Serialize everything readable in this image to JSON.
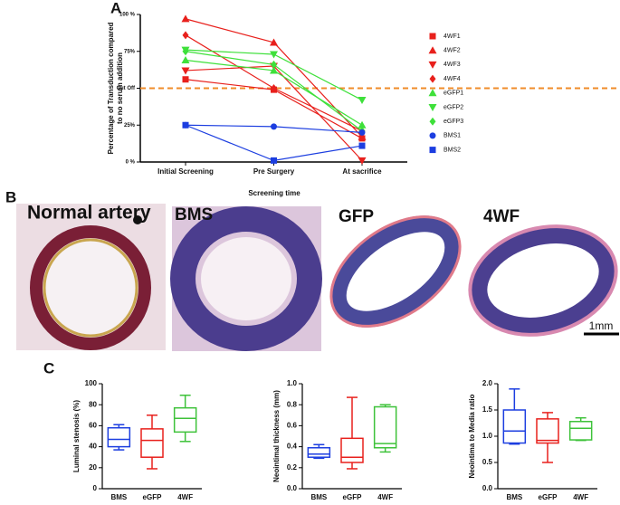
{
  "panels": {
    "b": "B"
  },
  "figure_b": {
    "x_label": "Screening time",
    "images": [
      "Normal artery",
      "BMS",
      "GFP",
      "4WF"
    ],
    "scale_bar": "1mm"
  },
  "chart_data": [
    {
      "type": "line",
      "panel": "A",
      "y_label": "Percentage of Transduction compared to no serum addition",
      "categories": [
        "Initial Screening",
        "Pre Surgery",
        "At sacrifice"
      ],
      "ylim": [
        0,
        100
      ],
      "yticks": [
        {
          "value": 0,
          "label": "0 %"
        },
        {
          "value": 25,
          "label": "25%"
        },
        {
          "value": 50,
          "label": "Cut Off"
        },
        {
          "value": 75,
          "label": "75%"
        },
        {
          "value": 100,
          "label": "100 %"
        }
      ],
      "reference_line": {
        "value": 50,
        "color": "#f08c2a"
      },
      "series": [
        {
          "name": "4WF1",
          "color": "#e8201c",
          "marker": "square",
          "values": [
            56,
            49,
            16
          ]
        },
        {
          "name": "4WF2",
          "color": "#e8201c",
          "marker": "triangle-up",
          "values": [
            97,
            81,
            17
          ]
        },
        {
          "name": "4WF3",
          "color": "#e8201c",
          "marker": "triangle-down",
          "values": [
            62,
            65,
            1
          ]
        },
        {
          "name": "4WF4",
          "color": "#e8201c",
          "marker": "diamond",
          "values": [
            86,
            50,
            21
          ]
        },
        {
          "name": "eGFP1",
          "color": "#3ee03a",
          "marker": "triangle-up",
          "values": [
            69,
            62,
            25
          ]
        },
        {
          "name": "eGFP2",
          "color": "#3ee03a",
          "marker": "triangle-down",
          "values": [
            76,
            73,
            42
          ]
        },
        {
          "name": "eGFP3",
          "color": "#3ee03a",
          "marker": "diamond",
          "values": [
            75,
            66,
            21
          ]
        },
        {
          "name": "BMS1",
          "color": "#1c3ee0",
          "marker": "circle",
          "values": [
            25,
            24,
            20
          ]
        },
        {
          "name": "BMS2",
          "color": "#1c3ee0",
          "marker": "square",
          "values": [
            25,
            1,
            11
          ]
        }
      ]
    },
    {
      "type": "box",
      "panel": "C",
      "y_label": "Luminal stenosis (%)",
      "categories": [
        "BMS",
        "eGFP",
        "4WF"
      ],
      "colors": [
        "#1c3ee0",
        "#e8201c",
        "#3ec23a"
      ],
      "ylim": [
        0,
        100
      ],
      "yticks": [
        0,
        20,
        40,
        60,
        80,
        100
      ],
      "boxes": [
        {
          "min": 37,
          "q1": 40,
          "median": 47,
          "q3": 58,
          "max": 61
        },
        {
          "min": 19,
          "q1": 30,
          "median": 46,
          "q3": 57,
          "max": 70
        },
        {
          "min": 45,
          "q1": 54,
          "median": 67,
          "q3": 77,
          "max": 89
        }
      ]
    },
    {
      "type": "box",
      "y_label": "Neointimal thickness (mm)",
      "categories": [
        "BMS",
        "eGFP",
        "4WF"
      ],
      "colors": [
        "#1c3ee0",
        "#e8201c",
        "#3ec23a"
      ],
      "ylim": [
        0,
        1
      ],
      "yticks": [
        {
          "value": 0,
          "label": "0.0"
        },
        0.2,
        0.4,
        0.6,
        0.8,
        {
          "value": 1,
          "label": "1.0"
        }
      ],
      "boxes": [
        {
          "min": 0.29,
          "q1": 0.3,
          "median": 0.33,
          "q3": 0.39,
          "max": 0.42
        },
        {
          "min": 0.19,
          "q1": 0.25,
          "median": 0.3,
          "q3": 0.48,
          "max": 0.87
        },
        {
          "min": 0.35,
          "q1": 0.39,
          "median": 0.43,
          "q3": 0.78,
          "max": 0.8
        }
      ]
    },
    {
      "type": "box",
      "y_label": "Neointima to Media ratio",
      "categories": [
        "BMS",
        "eGFP",
        "4WF"
      ],
      "colors": [
        "#1c3ee0",
        "#e8201c",
        "#3ec23a"
      ],
      "ylim": [
        0,
        2
      ],
      "yticks": [
        {
          "value": 0,
          "label": "0.0"
        },
        0.5,
        {
          "value": 1,
          "label": "1.0"
        },
        1.5,
        {
          "value": 2,
          "label": "2.0"
        }
      ],
      "boxes": [
        {
          "min": 0.85,
          "q1": 0.87,
          "median": 1.1,
          "q3": 1.5,
          "max": 1.9
        },
        {
          "min": 0.5,
          "q1": 0.87,
          "median": 0.92,
          "q3": 1.33,
          "max": 1.45
        },
        {
          "min": 0.92,
          "q1": 0.93,
          "median": 1.15,
          "q3": 1.28,
          "max": 1.35
        }
      ]
    }
  ]
}
